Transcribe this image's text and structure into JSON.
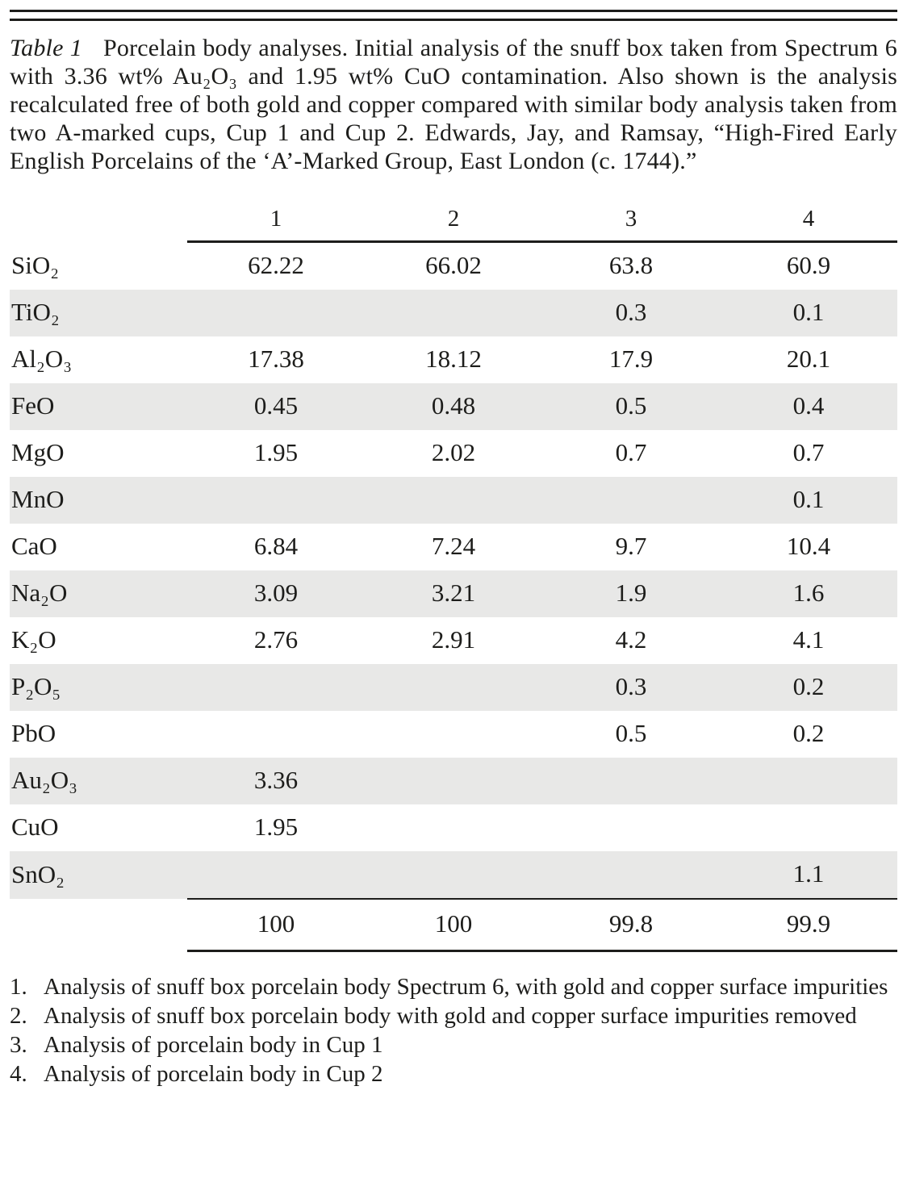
{
  "caption": {
    "label": "Table 1",
    "text": "Porcelain body analyses. Initial analysis of the snuff box taken from Spectrum 6 with 3.36 wt% Au₂O₃ and 1.95 wt% CuO contamination. Also shown is the analysis recalculated free of both gold and copper compared with similar body analysis taken from two A-marked cups, Cup 1 and Cup 2. Edwards, Jay, and Ramsay, “High-Fired Early English Porcelains of the ‘A’-Marked Group, East London (c. 1744).”"
  },
  "table": {
    "columns": [
      "1",
      "2",
      "3",
      "4"
    ],
    "rows": [
      {
        "compound": "SiO₂",
        "values": [
          "62.22",
          "66.02",
          "63.8",
          "60.9"
        ]
      },
      {
        "compound": "TiO₂",
        "values": [
          "",
          "",
          "0.3",
          "0.1"
        ]
      },
      {
        "compound": "Al₂O₃",
        "values": [
          "17.38",
          "18.12",
          "17.9",
          "20.1"
        ]
      },
      {
        "compound": "FeO",
        "values": [
          "0.45",
          "0.48",
          "0.5",
          "0.4"
        ]
      },
      {
        "compound": "MgO",
        "values": [
          "1.95",
          "2.02",
          "0.7",
          "0.7"
        ]
      },
      {
        "compound": "MnO",
        "values": [
          "",
          "",
          "",
          "0.1"
        ]
      },
      {
        "compound": "CaO",
        "values": [
          "6.84",
          "7.24",
          "9.7",
          "10.4"
        ]
      },
      {
        "compound": "Na₂O",
        "values": [
          "3.09",
          "3.21",
          "1.9",
          "1.6"
        ]
      },
      {
        "compound": "K₂O",
        "values": [
          "2.76",
          "2.91",
          "4.2",
          "4.1"
        ]
      },
      {
        "compound": "P₂O₅",
        "values": [
          "",
          "",
          "0.3",
          "0.2"
        ]
      },
      {
        "compound": "PbO",
        "values": [
          "",
          "",
          "0.5",
          "0.2"
        ]
      },
      {
        "compound": "Au₂O₃",
        "values": [
          "3.36",
          "",
          "",
          ""
        ]
      },
      {
        "compound": "CuO",
        "values": [
          "1.95",
          "",
          "",
          ""
        ]
      },
      {
        "compound": "SnO₂",
        "values": [
          "",
          "",
          "",
          "1.1"
        ]
      }
    ],
    "totals": [
      "100",
      "100",
      "99.8",
      "99.9"
    ]
  },
  "footnotes": [
    {
      "number": "1.",
      "text": "Analysis of snuff box porcelain body Spectrum 6, with gold and copper surface impurities"
    },
    {
      "number": "2.",
      "text": "Analysis of snuff box porcelain body with gold and copper surface impurities removed"
    },
    {
      "number": "3.",
      "text": "Analysis of porcelain body in Cup 1"
    },
    {
      "number": "4.",
      "text": "Analysis of porcelain body in Cup 2"
    }
  ]
}
